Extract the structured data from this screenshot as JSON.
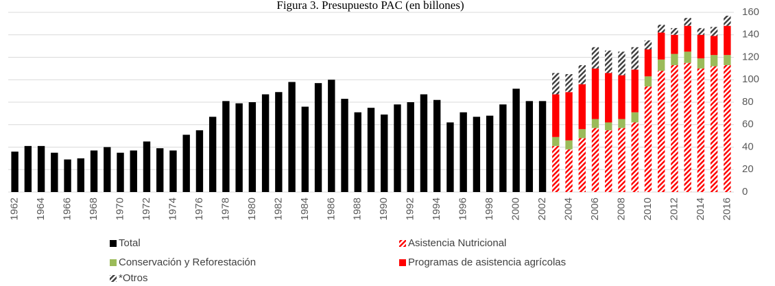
{
  "chart_data": {
    "type": "stacked_bar",
    "title": "Figura 3. Presupuesto PAC (en billones)",
    "categories": [
      "1962",
      null,
      "1964",
      null,
      "1966",
      null,
      "1968",
      null,
      "1970",
      null,
      "1972",
      null,
      "1974",
      null,
      "1976",
      null,
      "1978",
      null,
      "1980",
      null,
      "1982",
      null,
      "1984",
      null,
      "1986",
      null,
      "1988",
      null,
      "1990",
      null,
      "1992",
      null,
      "1994",
      null,
      "1996",
      null,
      "1998",
      null,
      "2000",
      null,
      "2002",
      null,
      "2004",
      null,
      "2006",
      null,
      "2008",
      null,
      "2010",
      null,
      "2012",
      null,
      "2014",
      null,
      "2016"
    ],
    "series": [
      {
        "name": "Total",
        "color": "#000000",
        "hatch": false,
        "values": [
          36,
          41,
          41,
          35,
          29,
          30,
          37,
          40,
          35,
          37,
          45,
          39,
          37,
          51,
          55,
          67,
          81,
          79,
          80,
          87,
          89,
          98,
          76,
          97,
          100,
          83,
          71,
          75,
          69,
          78,
          80,
          87,
          82,
          62,
          71,
          67,
          68,
          78,
          92,
          81,
          81,
          null,
          null,
          null,
          null,
          null,
          null,
          null,
          null,
          null,
          null,
          null,
          null,
          null,
          null
        ]
      },
      {
        "name": "Asistencia Nutricional",
        "color": "#ff0000",
        "hatch": true,
        "values": [
          null,
          null,
          null,
          null,
          null,
          null,
          null,
          null,
          null,
          null,
          null,
          null,
          null,
          null,
          null,
          null,
          null,
          null,
          null,
          null,
          null,
          null,
          null,
          null,
          null,
          null,
          null,
          null,
          null,
          null,
          null,
          null,
          null,
          null,
          null,
          null,
          null,
          null,
          null,
          null,
          null,
          41,
          38,
          48,
          57,
          55,
          57,
          62,
          94,
          108,
          113,
          115,
          110,
          112,
          113
        ]
      },
      {
        "name": "Conservación y Reforestación",
        "color": "#9bbb59",
        "hatch": false,
        "values": [
          null,
          null,
          null,
          null,
          null,
          null,
          null,
          null,
          null,
          null,
          null,
          null,
          null,
          null,
          null,
          null,
          null,
          null,
          null,
          null,
          null,
          null,
          null,
          null,
          null,
          null,
          null,
          null,
          null,
          null,
          null,
          null,
          null,
          null,
          null,
          null,
          null,
          null,
          null,
          null,
          null,
          8,
          8,
          8,
          8,
          7,
          8,
          9,
          9,
          10,
          10,
          10,
          9,
          10,
          9
        ]
      },
      {
        "name": "Programas de asistencia agrícolas",
        "color": "#ff0000",
        "hatch": false,
        "values": [
          null,
          null,
          null,
          null,
          null,
          null,
          null,
          null,
          null,
          null,
          null,
          null,
          null,
          null,
          null,
          null,
          null,
          null,
          null,
          null,
          null,
          null,
          null,
          null,
          null,
          null,
          null,
          null,
          null,
          null,
          null,
          null,
          null,
          null,
          null,
          null,
          null,
          null,
          null,
          null,
          null,
          38,
          43,
          40,
          45,
          44,
          39,
          38,
          24,
          24,
          17,
          23,
          21,
          17,
          26
        ]
      },
      {
        "name": "*Otros",
        "color": "#404040",
        "hatch": true,
        "values": [
          null,
          null,
          null,
          null,
          null,
          null,
          null,
          null,
          null,
          null,
          null,
          null,
          null,
          null,
          null,
          null,
          null,
          null,
          null,
          null,
          null,
          null,
          null,
          null,
          null,
          null,
          null,
          null,
          null,
          null,
          null,
          null,
          null,
          null,
          null,
          null,
          null,
          null,
          null,
          null,
          null,
          19,
          16,
          17,
          19,
          20,
          21,
          20,
          8,
          7,
          6,
          7,
          6,
          8,
          9
        ]
      }
    ],
    "ylim": [
      0,
      160
    ],
    "yticks": [
      0,
      20,
      40,
      60,
      80,
      100,
      120,
      140,
      160
    ],
    "y_axis_side": "right",
    "grid": true,
    "legend": "bottom"
  }
}
